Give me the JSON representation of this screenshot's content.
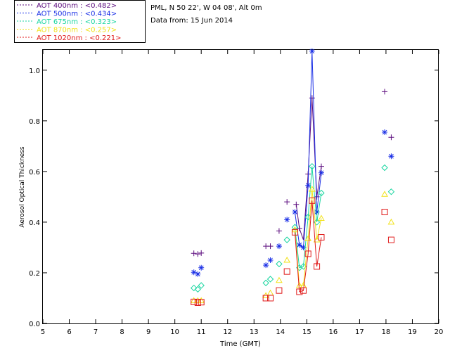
{
  "header": {
    "location": "PML, N 50 22', W 04 08', Alt 0m",
    "date": "Data from: 15 Jun 2014"
  },
  "chart_data": {
    "type": "scatter",
    "title": "",
    "xlabel": "Time (GMT)",
    "ylabel": "Aerosol Optical Thickness",
    "xlim": [
      5,
      20
    ],
    "ylim": [
      0,
      1.08
    ],
    "xticks": [
      5,
      6,
      7,
      8,
      9,
      10,
      11,
      12,
      13,
      14,
      15,
      16,
      17,
      18,
      19,
      20
    ],
    "yticks": [
      0.0,
      0.2,
      0.4,
      0.6,
      0.8,
      1.0
    ],
    "legend_position": "top-left, outside plot",
    "series": [
      {
        "name": "AOT  400nm : <0.482>",
        "color": "#5b0b7e",
        "marker": "plus",
        "points": [
          [
            10.72,
            0.277
          ],
          [
            10.87,
            0.274
          ],
          [
            11.0,
            0.278
          ],
          [
            13.45,
            0.305
          ],
          [
            13.62,
            0.305
          ],
          [
            13.95,
            0.365
          ],
          [
            14.25,
            0.48
          ],
          [
            14.6,
            0.47
          ],
          [
            14.72,
            0.375
          ],
          [
            15.05,
            0.59
          ],
          [
            15.2,
            0.89
          ],
          [
            15.38,
            0.5
          ],
          [
            15.55,
            0.62
          ],
          [
            17.95,
            0.915
          ],
          [
            18.2,
            0.735
          ]
        ],
        "line": [
          [
            14.6,
            0.47
          ],
          [
            14.72,
            0.375
          ],
          [
            14.87,
            0.33
          ],
          [
            15.05,
            0.59
          ],
          [
            15.2,
            0.89
          ],
          [
            15.38,
            0.5
          ],
          [
            15.55,
            0.62
          ]
        ]
      },
      {
        "name": "AOT  500nm : <0.434>",
        "color": "#1a2fe6",
        "marker": "asterisk",
        "points": [
          [
            10.72,
            0.202
          ],
          [
            10.87,
            0.195
          ],
          [
            11.0,
            0.22
          ],
          [
            13.45,
            0.23
          ],
          [
            13.62,
            0.25
          ],
          [
            13.95,
            0.305
          ],
          [
            14.25,
            0.41
          ],
          [
            14.55,
            0.44
          ],
          [
            14.72,
            0.31
          ],
          [
            14.87,
            0.3
          ],
          [
            15.05,
            0.545
          ],
          [
            15.2,
            1.075
          ],
          [
            15.38,
            0.44
          ],
          [
            15.55,
            0.595
          ],
          [
            17.95,
            0.755
          ],
          [
            18.2,
            0.66
          ]
        ],
        "line": [
          [
            14.55,
            0.44
          ],
          [
            14.72,
            0.31
          ],
          [
            14.87,
            0.3
          ],
          [
            15.05,
            0.545
          ],
          [
            15.2,
            1.075
          ],
          [
            15.38,
            0.44
          ],
          [
            15.55,
            0.595
          ]
        ]
      },
      {
        "name": "AOT  675nm : <0.323>",
        "color": "#19d6a0",
        "marker": "diamond",
        "points": [
          [
            10.72,
            0.14
          ],
          [
            10.87,
            0.135
          ],
          [
            11.0,
            0.15
          ],
          [
            13.45,
            0.16
          ],
          [
            13.62,
            0.175
          ],
          [
            13.95,
            0.235
          ],
          [
            14.25,
            0.33
          ],
          [
            14.55,
            0.38
          ],
          [
            14.72,
            0.22
          ],
          [
            14.87,
            0.225
          ],
          [
            15.05,
            0.42
          ],
          [
            15.2,
            0.62
          ],
          [
            15.38,
            0.4
          ],
          [
            15.55,
            0.515
          ],
          [
            17.95,
            0.615
          ],
          [
            18.2,
            0.52
          ]
        ],
        "line": [
          [
            14.55,
            0.38
          ],
          [
            14.72,
            0.22
          ],
          [
            14.87,
            0.225
          ],
          [
            15.05,
            0.42
          ],
          [
            15.2,
            0.62
          ],
          [
            15.38,
            0.4
          ],
          [
            15.55,
            0.515
          ]
        ]
      },
      {
        "name": "AOT  870nm : <0.257>",
        "color": "#f2e21a",
        "marker": "triangle",
        "points": [
          [
            10.72,
            0.09
          ],
          [
            10.87,
            0.09
          ],
          [
            11.0,
            0.09
          ],
          [
            13.45,
            0.11
          ],
          [
            13.62,
            0.12
          ],
          [
            13.95,
            0.17
          ],
          [
            14.25,
            0.25
          ],
          [
            14.55,
            0.37
          ],
          [
            14.72,
            0.15
          ],
          [
            14.87,
            0.15
          ],
          [
            15.05,
            0.335
          ],
          [
            15.2,
            0.53
          ],
          [
            15.38,
            0.33
          ],
          [
            15.55,
            0.415
          ],
          [
            17.95,
            0.51
          ],
          [
            18.2,
            0.4
          ]
        ],
        "line": [
          [
            14.55,
            0.37
          ],
          [
            14.72,
            0.15
          ],
          [
            14.87,
            0.15
          ],
          [
            15.05,
            0.335
          ],
          [
            15.2,
            0.53
          ],
          [
            15.38,
            0.33
          ],
          [
            15.55,
            0.415
          ]
        ]
      },
      {
        "name": "AOT 1020nm : <0.221>",
        "color": "#e01a1a",
        "marker": "square",
        "points": [
          [
            10.72,
            0.085
          ],
          [
            10.87,
            0.082
          ],
          [
            11.0,
            0.084
          ],
          [
            13.45,
            0.1
          ],
          [
            13.62,
            0.1
          ],
          [
            13.95,
            0.13
          ],
          [
            14.25,
            0.205
          ],
          [
            14.55,
            0.36
          ],
          [
            14.72,
            0.125
          ],
          [
            14.87,
            0.13
          ],
          [
            15.05,
            0.275
          ],
          [
            15.2,
            0.485
          ],
          [
            15.38,
            0.225
          ],
          [
            15.55,
            0.34
          ],
          [
            17.95,
            0.44
          ],
          [
            18.2,
            0.33
          ]
        ],
        "line": [
          [
            14.55,
            0.36
          ],
          [
            14.72,
            0.125
          ],
          [
            14.87,
            0.13
          ],
          [
            15.05,
            0.275
          ],
          [
            15.2,
            0.485
          ],
          [
            15.38,
            0.225
          ],
          [
            15.55,
            0.34
          ]
        ]
      }
    ]
  }
}
